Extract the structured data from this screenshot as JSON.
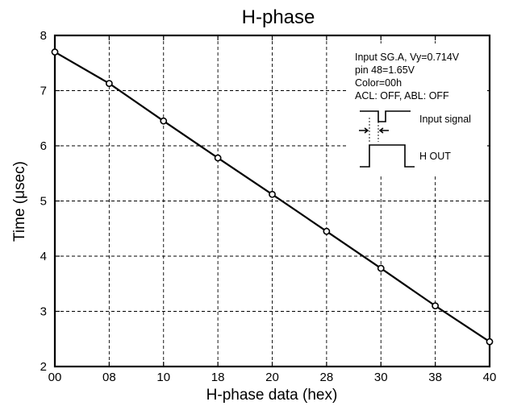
{
  "chart_data": {
    "type": "line",
    "title": "H-phase",
    "xlabel": "H-phase data (hex)",
    "ylabel": "Time (μsec)",
    "x_tick_labels": [
      "00",
      "08",
      "10",
      "18",
      "20",
      "28",
      "30",
      "38",
      "40"
    ],
    "y_tick_labels": [
      "2",
      "3",
      "4",
      "5",
      "6",
      "7",
      "8"
    ],
    "xlim": [
      0,
      64
    ],
    "ylim": [
      2,
      8
    ],
    "grid": true,
    "legend": "none",
    "series": [
      {
        "x": [
          0,
          8,
          16,
          24,
          32,
          40,
          48,
          56,
          64
        ],
        "y": [
          7.7,
          7.13,
          6.45,
          5.78,
          5.12,
          4.45,
          3.78,
          3.1,
          2.45
        ]
      }
    ],
    "annotation": {
      "lines": [
        "Input SG.A, Vy=0.714V",
        "pin 48=1.65V",
        "Color=00h",
        "ACL: OFF, ABL: OFF"
      ],
      "input_signal_label": "Input signal",
      "h_out_label": "H OUT"
    }
  }
}
